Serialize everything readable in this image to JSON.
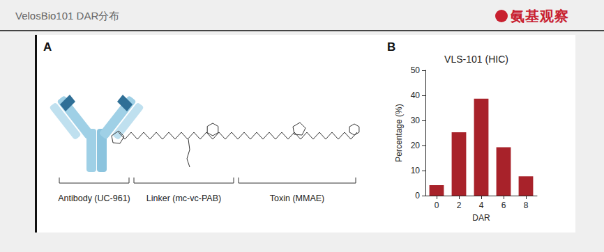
{
  "header": {
    "title": "VelosBio101 DAR分布",
    "logo": "氨基观察"
  },
  "panel_a": {
    "label": "A",
    "parts": [
      {
        "label": "Antibody (UC-961)"
      },
      {
        "label": "Linker (mc-vc-PAB)"
      },
      {
        "label": "Toxin (MMAE)"
      }
    ]
  },
  "panel_b": {
    "label": "B"
  },
  "chart_data": {
    "type": "bar",
    "title": "VLS-101 (HIC)",
    "x_label": "DAR",
    "y_label": "Percentage (%)",
    "categories": [
      "0",
      "2",
      "4",
      "6",
      "8"
    ],
    "values": [
      4.2,
      25.3,
      38.7,
      19.3,
      7.7
    ],
    "color": "#a8222a",
    "ylim": [
      0,
      50
    ],
    "yticks": [
      0,
      10,
      20,
      30,
      40,
      50
    ],
    "grid": false
  }
}
